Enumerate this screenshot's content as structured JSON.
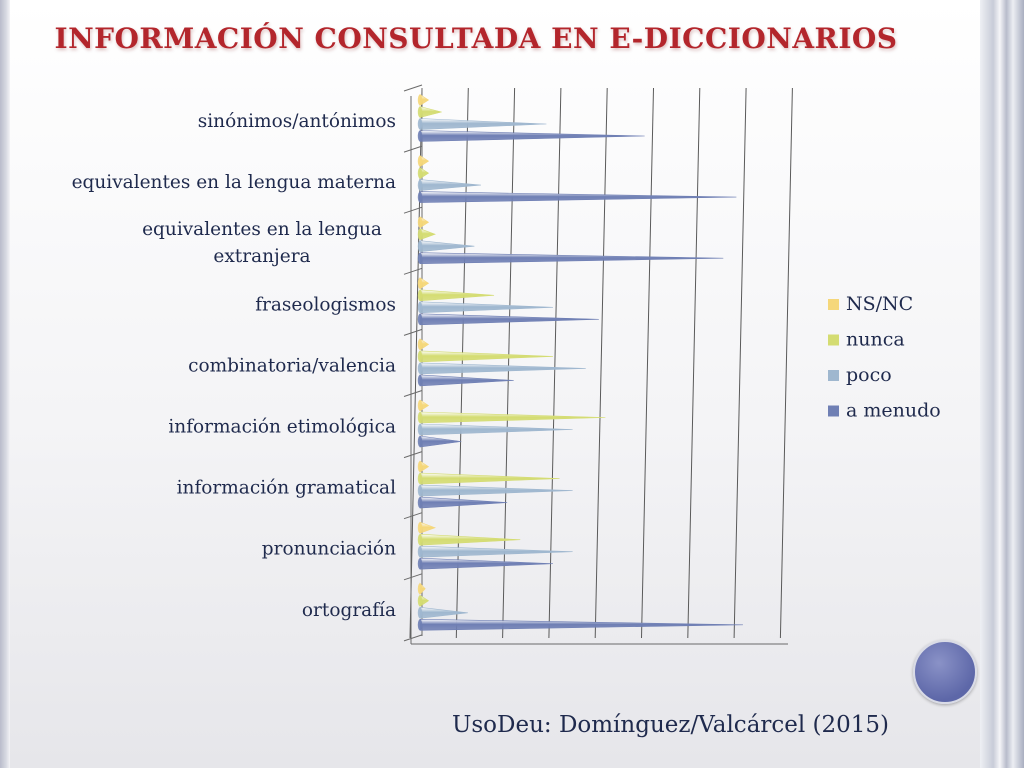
{
  "title": "INFORMACIÓN CONSULTADA EN E-DICCIONARIOS",
  "credit": "UsoDeu: Domínguez/Valcárcel (2015)",
  "chart_data": {
    "type": "bar",
    "orientation": "horizontal",
    "style": "3d-cone",
    "categories": [
      "sinónimos/antónimos",
      "equivalentes en la lengua materna",
      "equivalentes en la lengua extranjera",
      "fraseologismos",
      "combinatoria/valencia",
      "información etimológica",
      "información gramatical",
      "pronunciación",
      "ortografía"
    ],
    "series": [
      {
        "name": "NS/NC",
        "color": "#f5d77a",
        "values": [
          1,
          1,
          1,
          1,
          1,
          1,
          1,
          2,
          0.5
        ]
      },
      {
        "name": "nunca",
        "color": "#d4dc72",
        "values": [
          3,
          1,
          2,
          11,
          20,
          28,
          21,
          15,
          1
        ]
      },
      {
        "name": "poco",
        "color": "#9fb7cf",
        "values": [
          19,
          9,
          8,
          20,
          25,
          23,
          23,
          23,
          7
        ]
      },
      {
        "name": "a menudo",
        "color": "#6f7fb4",
        "values": [
          34,
          48,
          46,
          27,
          14,
          6,
          13,
          20,
          49
        ]
      }
    ],
    "xlim": [
      0,
      80
    ],
    "grid": true,
    "legend_position": "right"
  }
}
